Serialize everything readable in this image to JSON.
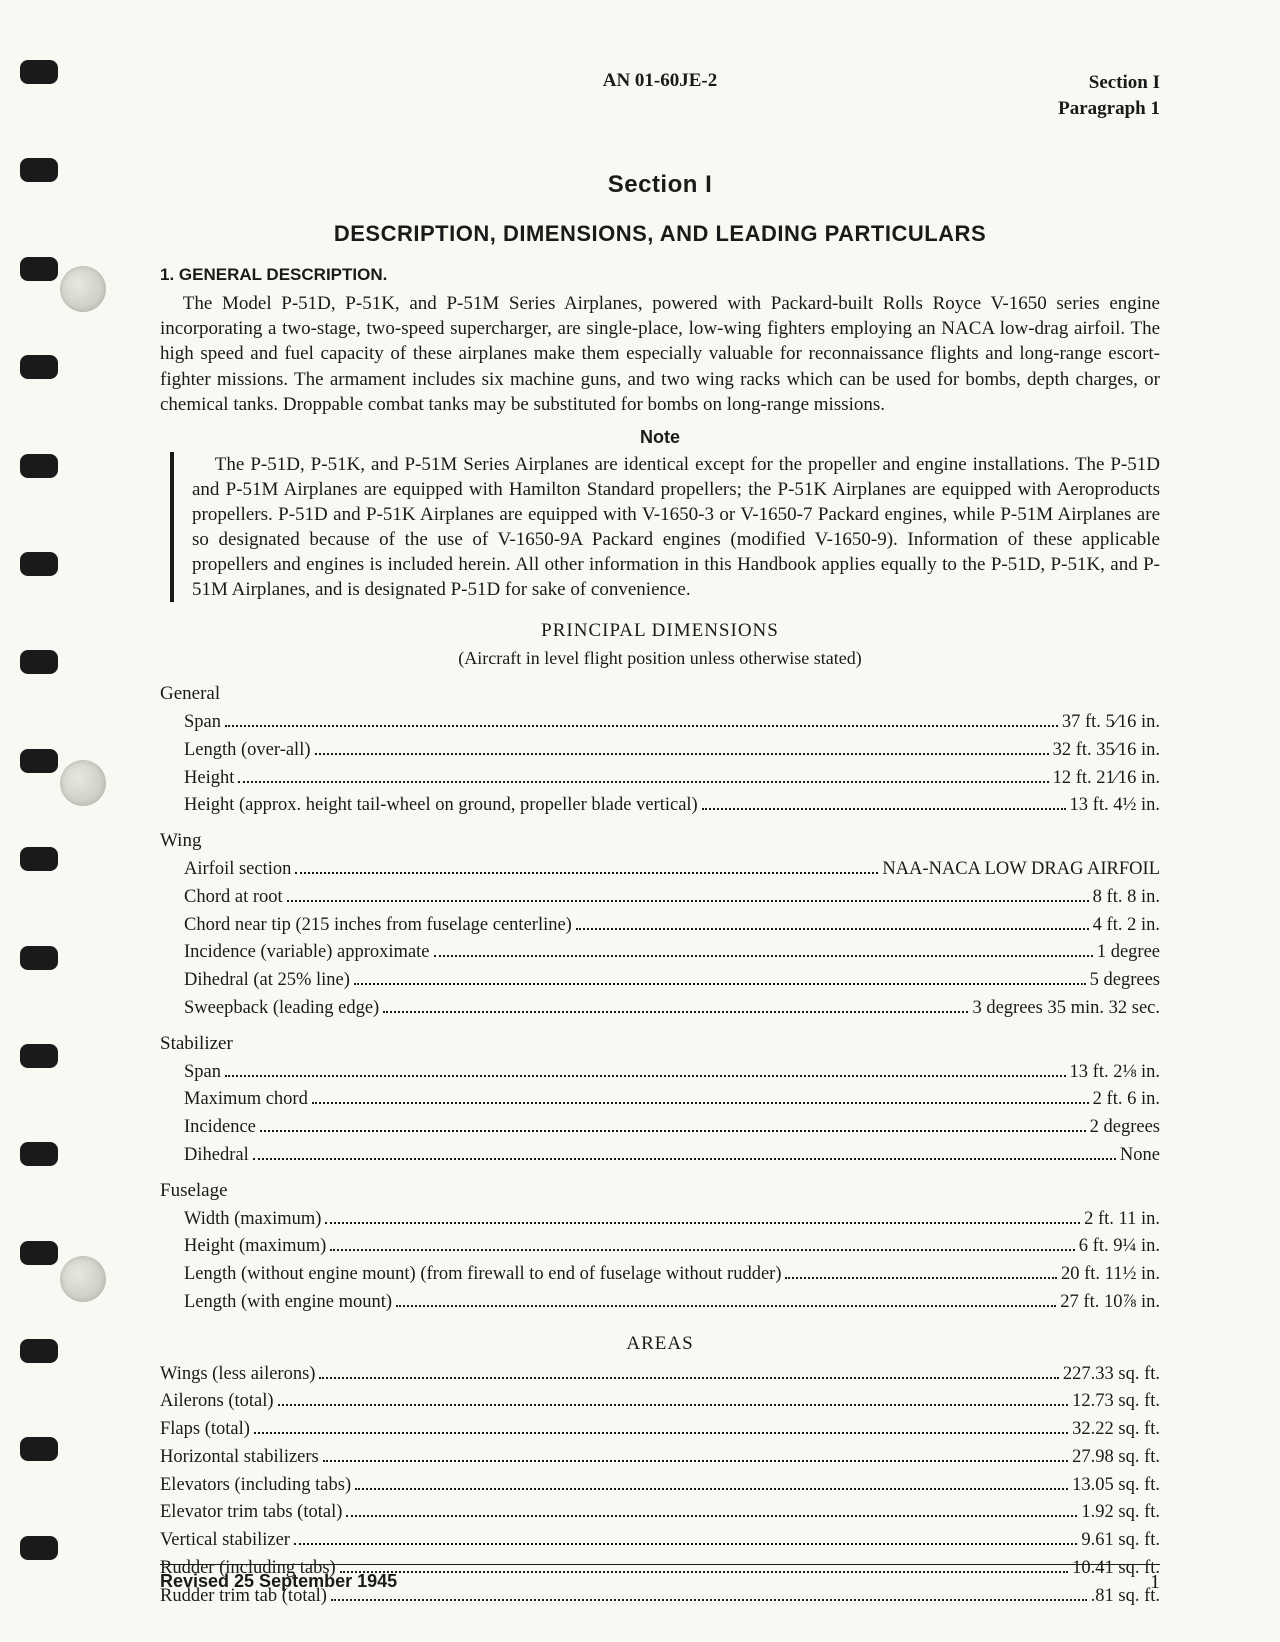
{
  "header": {
    "doc_number": "AN 01-60JE-2",
    "section_ref_line1": "Section I",
    "section_ref_line2": "Paragraph 1"
  },
  "titles": {
    "section": "Section I",
    "subtitle": "DESCRIPTION, DIMENSIONS, AND LEADING PARTICULARS"
  },
  "para1": {
    "head": "1. GENERAL DESCRIPTION.",
    "body": "The Model P-51D, P-51K, and P-51M Series Airplanes, powered with Packard-built Rolls Royce V-1650 series engine incorporating a two-stage, two-speed supercharger, are single-place, low-wing fighters employing an NACA low-drag airfoil. The high speed and fuel capacity of these airplanes make them especially valuable for reconnaissance flights and long-range escort-fighter missions. The armament includes six machine guns, and two wing racks which can be used for bombs, depth charges, or chemical tanks. Droppable combat tanks may be substituted for bombs on long-range missions."
  },
  "note": {
    "head": "Note",
    "body": "The P-51D, P-51K, and P-51M Series Airplanes are identical except for the propeller and engine installations. The P-51D and P-51M Airplanes are equipped with Hamilton Standard propellers; the P-51K Airplanes are equipped with Aeroproducts propellers. P-51D and P-51K Airplanes are equipped with V-1650-3 or V-1650-7 Packard engines, while P-51M Airplanes are so designated because of the use of V-1650-9A Packard engines (modified V-1650-9). Information of these applicable propellers and engines is included herein. All other information in this Handbook applies equally to the P-51D, P-51K, and P-51M Airplanes, and is designated P-51D for sake of convenience."
  },
  "dimensions": {
    "title": "PRINCIPAL DIMENSIONS",
    "subtitle": "(Aircraft in level flight position unless otherwise stated)",
    "groups": [
      {
        "name": "General",
        "items": [
          {
            "label": "Span",
            "value": "37 ft. 5⁄16 in."
          },
          {
            "label": "Length (over-all)",
            "value": "32 ft. 35⁄16 in."
          },
          {
            "label": "Height",
            "value": "12 ft. 21⁄16 in."
          },
          {
            "label": "Height (approx. height tail-wheel on ground, propeller blade vertical)",
            "value": "13 ft. 4½ in."
          }
        ]
      },
      {
        "name": "Wing",
        "items": [
          {
            "label": "Airfoil section",
            "value": "NAA-NACA LOW DRAG AIRFOIL"
          },
          {
            "label": "Chord at root",
            "value": "8 ft. 8 in."
          },
          {
            "label": "Chord near tip (215 inches from fuselage centerline)",
            "value": "4 ft. 2 in."
          },
          {
            "label": "Incidence (variable) approximate",
            "value": "1 degree"
          },
          {
            "label": "Dihedral (at 25% line)",
            "value": "5 degrees"
          },
          {
            "label": "Sweepback (leading edge)",
            "value": "3 degrees 35 min. 32 sec."
          }
        ]
      },
      {
        "name": "Stabilizer",
        "items": [
          {
            "label": "Span",
            "value": "13 ft. 2⅛ in."
          },
          {
            "label": "Maximum chord",
            "value": "2 ft. 6 in."
          },
          {
            "label": "Incidence",
            "value": "2 degrees"
          },
          {
            "label": "Dihedral",
            "value": "None"
          }
        ]
      },
      {
        "name": "Fuselage",
        "items": [
          {
            "label": "Width (maximum)",
            "value": "2 ft. 11 in."
          },
          {
            "label": "Height (maximum)",
            "value": "6 ft. 9¼ in."
          },
          {
            "label": "Length (without engine mount) (from firewall to end of fuselage without rudder)",
            "value": "20 ft. 11½ in."
          },
          {
            "label": "Length (with engine mount)",
            "value": "27 ft. 10⅞ in."
          }
        ]
      }
    ]
  },
  "areas": {
    "title": "AREAS",
    "items": [
      {
        "label": "Wings (less ailerons)",
        "value": "227.33 sq. ft."
      },
      {
        "label": "Ailerons (total)",
        "value": "12.73 sq. ft."
      },
      {
        "label": "Flaps (total)",
        "value": "32.22 sq. ft."
      },
      {
        "label": "Horizontal stabilizers",
        "value": "27.98 sq. ft."
      },
      {
        "label": "Elevators (including tabs)",
        "value": "13.05 sq. ft."
      },
      {
        "label": "Elevator trim tabs (total)",
        "value": "1.92 sq. ft."
      },
      {
        "label": "Vertical stabilizer",
        "value": "9.61 sq. ft."
      },
      {
        "label": "Rudder (including tabs)",
        "value": "10.41 sq. ft."
      },
      {
        "label": "Rudder trim tab (total)",
        "value": ".81 sq. ft."
      }
    ]
  },
  "footer": {
    "revised": "Revised 25 September 1945",
    "page": "1"
  }
}
